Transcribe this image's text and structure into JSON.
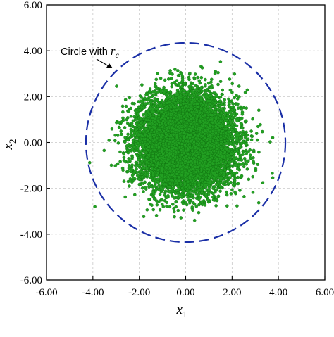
{
  "chart_data": {
    "type": "scatter",
    "title": "",
    "xlabel": "x",
    "xlabel_sub": "1",
    "ylabel": "x",
    "ylabel_sub": "2",
    "xlim": [
      -6,
      6
    ],
    "ylim": [
      -6,
      6
    ],
    "xticks": [
      "-6.00",
      "-4.00",
      "-2.00",
      "0.00",
      "2.00",
      "4.00",
      "6.00"
    ],
    "yticks": [
      "-6.00",
      "-4.00",
      "-2.00",
      "0.00",
      "2.00",
      "4.00",
      "6.00"
    ],
    "xtick_values": [
      -6,
      -4,
      -2,
      0,
      2,
      4,
      6
    ],
    "ytick_values": [
      -6,
      -4,
      -2,
      0,
      2,
      4,
      6
    ],
    "grid": true,
    "circle": {
      "label_prefix": "Circle with ",
      "label_var": "r",
      "label_sub": "c",
      "center": [
        0,
        0
      ],
      "radius": 4.3,
      "color": "#1a2fa6"
    },
    "points": {
      "color": "#22a022",
      "edge_color": "#0d6b0d",
      "distribution": "standard bivariate normal",
      "approx_count": 10000
    },
    "legend": "none"
  }
}
